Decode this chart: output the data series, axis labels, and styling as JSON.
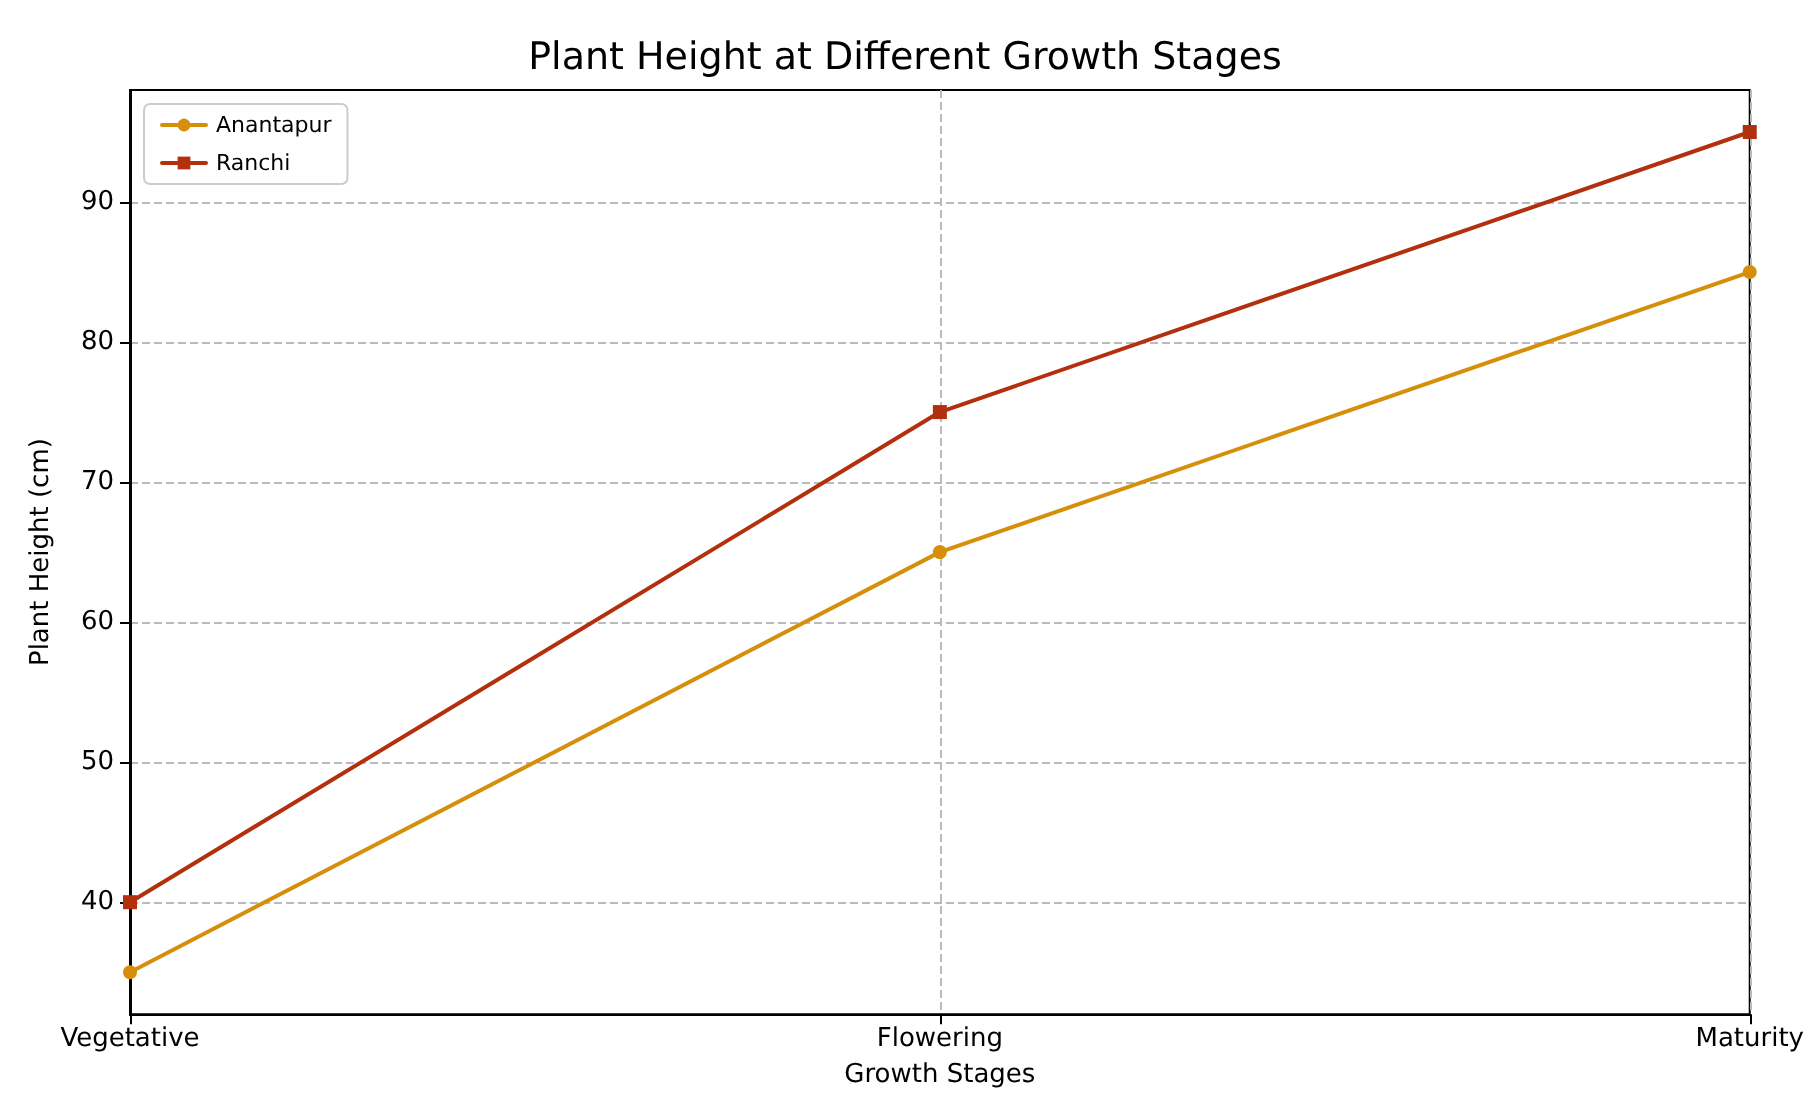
{
  "chart_data": {
    "type": "line",
    "title": "Plant Height at Different Growth Stages",
    "xlabel": "Growth Stages",
    "ylabel": "Plant Height (cm)",
    "categories": [
      "Vegetative",
      "Flowering",
      "Maturity"
    ],
    "series": [
      {
        "name": "Anantapur",
        "color": "#d68f0b",
        "marker": "circle",
        "values": [
          35,
          65,
          85
        ]
      },
      {
        "name": "Ranchi",
        "color": "#b3300e",
        "marker": "square",
        "values": [
          40,
          75,
          95
        ]
      }
    ],
    "ylim": [
      32,
      98
    ],
    "yticks": [
      40,
      50,
      60,
      70,
      80,
      90
    ],
    "grid": true,
    "legend": "top left",
    "line_style": "solid"
  }
}
